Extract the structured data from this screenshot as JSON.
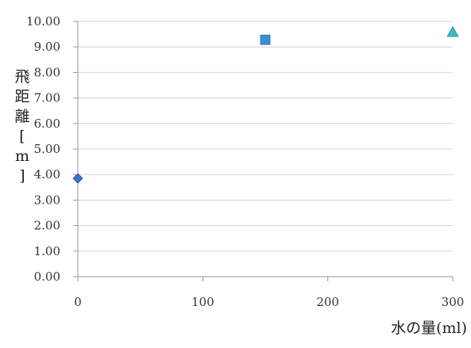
{
  "chart_data": {
    "type": "scatter",
    "title": "",
    "xlabel": "水の量(ml)",
    "ylabel": "飛距離[m]",
    "xlim": [
      0,
      300
    ],
    "ylim": [
      0,
      10
    ],
    "x_ticks": [
      "0",
      "100",
      "200",
      "300"
    ],
    "y_ticks": [
      "0.00",
      "1.00",
      "2.00",
      "3.00",
      "4.00",
      "5.00",
      "6.00",
      "7.00",
      "8.00",
      "9.00",
      "10.00"
    ],
    "grid": "horizontal",
    "legend": "none",
    "points": [
      {
        "x": 0,
        "y": 3.85,
        "marker": "diamond",
        "color": "#3f6fc6"
      },
      {
        "x": 150,
        "y": 9.28,
        "marker": "square",
        "color": "#3d8fd0"
      },
      {
        "x": 300,
        "y": 9.58,
        "marker": "triangle",
        "color": "#3bb8c8"
      }
    ]
  },
  "colors": {
    "grid": "#d4d4d4",
    "axis": "#9a9a9a"
  }
}
